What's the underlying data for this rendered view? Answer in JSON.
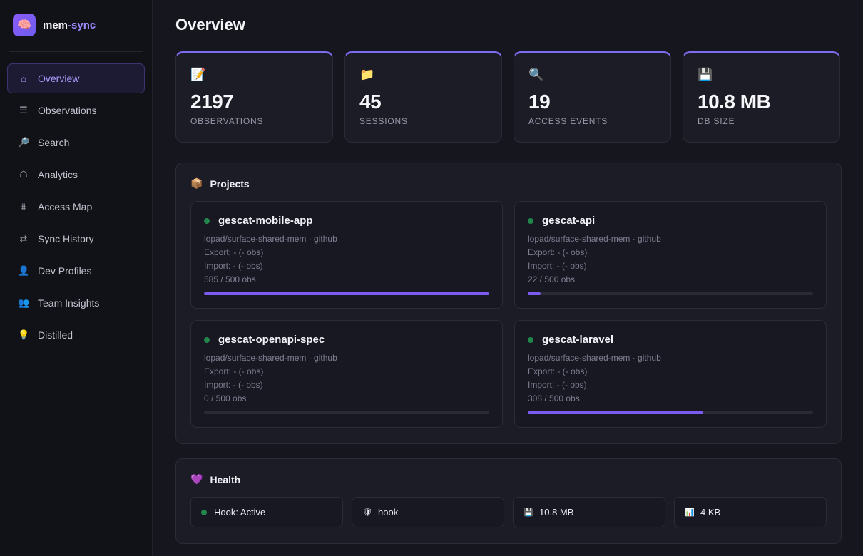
{
  "brand": {
    "name_main": "mem",
    "name_accent": "-sync"
  },
  "sidebar": {
    "items": [
      {
        "label": "Overview",
        "icon": "home-icon",
        "glyph": "⌂",
        "active": true
      },
      {
        "label": "Observations",
        "icon": "list-icon",
        "glyph": "☰",
        "active": false
      },
      {
        "label": "Search",
        "icon": "magnifier-icon",
        "glyph": "🔎",
        "active": false
      },
      {
        "label": "Analytics",
        "icon": "bell-icon",
        "glyph": "☖",
        "active": false
      },
      {
        "label": "Access Map",
        "icon": "map-icon",
        "glyph": "⩩",
        "active": false
      },
      {
        "label": "Sync History",
        "icon": "sync-icon",
        "glyph": "⇄",
        "active": false
      },
      {
        "label": "Dev Profiles",
        "icon": "user-icon",
        "glyph": "👤",
        "active": false
      },
      {
        "label": "Team Insights",
        "icon": "team-icon",
        "glyph": "👥",
        "active": false
      },
      {
        "label": "Distilled",
        "icon": "bulb-icon",
        "glyph": "💡",
        "active": false
      }
    ]
  },
  "main": {
    "title": "Overview",
    "stats": [
      {
        "icon": "memo-icon",
        "glyph": "📝",
        "value": "2197",
        "label": "OBSERVATIONS"
      },
      {
        "icon": "folder-icon",
        "glyph": "📁",
        "value": "45",
        "label": "SESSIONS"
      },
      {
        "icon": "search-icon",
        "glyph": "🔍",
        "value": "19",
        "label": "ACCESS EVENTS"
      },
      {
        "icon": "floppy-icon",
        "glyph": "💾",
        "value": "10.8 MB",
        "label": "DB SIZE"
      }
    ],
    "projects": {
      "title": "Projects",
      "icon": "package-icon",
      "glyph": "📦",
      "items": [
        {
          "name": "gescat-mobile-app",
          "repo": "lopad/surface-shared-mem · github",
          "export": "Export: - (- obs)",
          "import": "Import: - (- obs)",
          "count": "585 / 500 obs",
          "progress": 1.0
        },
        {
          "name": "gescat-api",
          "repo": "lopad/surface-shared-mem · github",
          "export": "Export: - (- obs)",
          "import": "Import: - (- obs)",
          "count": "22 / 500 obs",
          "progress": 0.044
        },
        {
          "name": "gescat-openapi-spec",
          "repo": "lopad/surface-shared-mem · github",
          "export": "Export: - (- obs)",
          "import": "Import: - (- obs)",
          "count": "0 / 500 obs",
          "progress": 0
        },
        {
          "name": "gescat-laravel",
          "repo": "lopad/surface-shared-mem · github",
          "export": "Export: - (- obs)",
          "import": "Import: - (- obs)",
          "count": "308 / 500 obs",
          "progress": 0.616
        }
      ]
    },
    "health": {
      "title": "Health",
      "icon": "heart-icon",
      "glyph": "💜",
      "items": [
        {
          "icon": "status-dot-icon",
          "glyph": "●",
          "label": "Hook: Active"
        },
        {
          "icon": "shield-icon",
          "glyph": "🛡",
          "label": "hook"
        },
        {
          "icon": "floppy-icon",
          "glyph": "💾",
          "label": "10.8 MB"
        },
        {
          "icon": "chart-icon",
          "glyph": "📊",
          "label": "4 KB"
        }
      ]
    }
  },
  "colors": {
    "accent": "#7c5cf0",
    "status_green": "#22874a",
    "active_nav": "#a99cff"
  }
}
